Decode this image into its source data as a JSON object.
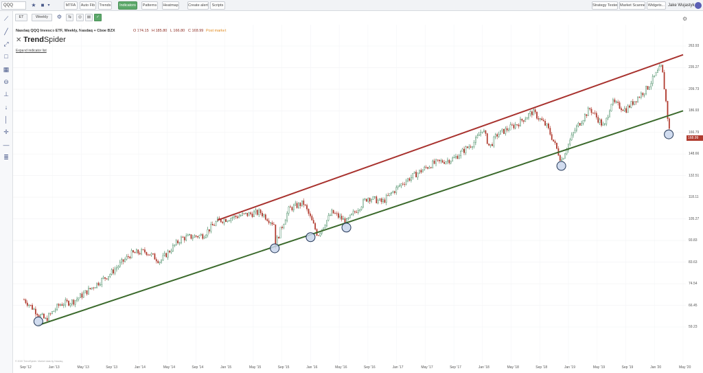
{
  "toolbar": {
    "symbol": "QQQ",
    "buttons": [
      {
        "label": "MTFA"
      },
      {
        "label": "Auto Fib"
      },
      {
        "label": "Trends"
      },
      {
        "label": "Indicators"
      },
      {
        "label": "Patterns"
      },
      {
        "label": "Heatmap"
      },
      {
        "label": "Create alert"
      },
      {
        "label": "Scripts"
      }
    ],
    "right_buttons": [
      {
        "label": "Strategy Tester"
      },
      {
        "label": "Market Scanner"
      },
      {
        "label": "Widgets..."
      }
    ],
    "user_name": "Jake Wujastyk"
  },
  "chart_toolbar": {
    "chart_type": "ET",
    "timeframe": "Weekly"
  },
  "legend": {
    "title": "Nasdaq QQQ Invesco ETF, Weekly, Nasdaq + Cboe BZX",
    "open": "O 174.15",
    "high": "H 185.80",
    "low": "L 166.80",
    "close": "C 168.99",
    "post_market": "Post market",
    "expand_label": "Expand indicator list"
  },
  "logo": {
    "prefix": "Trend",
    "suffix": "Spider"
  },
  "copyright": "© 2020 TrendSpider. Market data by Nasdaq.",
  "colors": {
    "up": "#2e7d4f",
    "down": "#b03a2e",
    "upper_trendline": "#a8322e",
    "lower_trendline": "#3b6a2c",
    "touch_marker": "#c9d6ec",
    "accent": "#5ca86a"
  },
  "icons": [
    "star-icon",
    "color-swatch-icon",
    "gear-icon",
    "crosshair-icon",
    "line-tool-icon",
    "user-avatar-icon"
  ],
  "chart_data": {
    "type": "candlestick",
    "symbol": "QQQ",
    "interval": "Weekly",
    "ylim": [
      53.08,
      263.93
    ],
    "y_ticks": [
      59.23,
      66.45,
      74.54,
      83.63,
      93.83,
      105.27,
      118.11,
      132.51,
      148.66,
      166.79,
      186.93,
      209.73,
      235.27,
      263.93
    ],
    "x_ticks": [
      "Sep '12",
      "Jan '13",
      "May '13",
      "Sep '13",
      "Jan '14",
      "May '14",
      "Sep '14",
      "Jan '15",
      "May '15",
      "Sep '15",
      "Jan '16",
      "May '16",
      "Sep '16",
      "Jan '17",
      "May '17",
      "Sep '17",
      "Jan '18",
      "May '18",
      "Sep '18",
      "Jan '19",
      "May '19",
      "Sep '19",
      "Jan '20",
      "May '20"
    ],
    "last_price": "168.99",
    "price_path": [
      [
        "2012-09",
        68.5
      ],
      [
        "2012-11",
        63.5
      ],
      [
        "2012-12",
        61.5
      ],
      [
        "2013-02",
        66.8
      ],
      [
        "2013-04",
        68.0
      ],
      [
        "2013-06",
        72.0
      ],
      [
        "2013-09",
        78.5
      ],
      [
        "2013-12",
        87.5
      ],
      [
        "2014-02",
        88.5
      ],
      [
        "2014-04",
        84.0
      ],
      [
        "2014-07",
        95.0
      ],
      [
        "2014-10",
        96.5
      ],
      [
        "2014-12",
        104.0
      ],
      [
        "2015-03",
        107.0
      ],
      [
        "2015-06",
        109.0
      ],
      [
        "2015-08",
        102.0
      ],
      [
        "2015-08",
        91.0
      ],
      [
        "2015-10",
        111.0
      ],
      [
        "2015-12",
        114.5
      ],
      [
        "2016-02",
        96.5
      ],
      [
        "2016-04",
        109.0
      ],
      [
        "2016-06",
        103.5
      ],
      [
        "2016-09",
        118.0
      ],
      [
        "2016-11",
        115.0
      ],
      [
        "2017-02",
        128.0
      ],
      [
        "2017-06",
        141.0
      ],
      [
        "2017-09",
        145.0
      ],
      [
        "2017-12",
        159.0
      ],
      [
        "2018-01",
        170.0
      ],
      [
        "2018-02",
        154.0
      ],
      [
        "2018-03",
        164.5
      ],
      [
        "2018-06",
        175.0
      ],
      [
        "2018-08",
        186.0
      ],
      [
        "2018-10",
        172.0
      ],
      [
        "2018-12",
        143.5
      ],
      [
        "2019-02",
        170.0
      ],
      [
        "2019-04",
        189.0
      ],
      [
        "2019-06",
        171.0
      ],
      [
        "2019-07",
        196.0
      ],
      [
        "2019-09",
        188.0
      ],
      [
        "2019-12",
        211.0
      ],
      [
        "2020-02",
        237.0
      ],
      [
        "2020-03",
        170.0
      ],
      [
        "2020-03",
        168.99
      ]
    ],
    "trendlines": [
      {
        "name": "Upper channel",
        "points": [
          [
            "2014-12",
            104.5
          ],
          [
            "2020-05",
            252.0
          ]
        ]
      },
      {
        "name": "Lower channel",
        "points": [
          [
            "2012-11",
            59.8
          ],
          [
            "2020-05",
            187.0
          ]
        ]
      }
    ],
    "touch_points": [
      [
        "2012-11",
        61.0
      ],
      [
        "2015-08",
        90.0
      ],
      [
        "2016-01",
        95.5
      ],
      [
        "2016-06",
        100.5
      ],
      [
        "2018-12",
        139.5
      ],
      [
        "2020-03",
        165.0
      ]
    ]
  }
}
